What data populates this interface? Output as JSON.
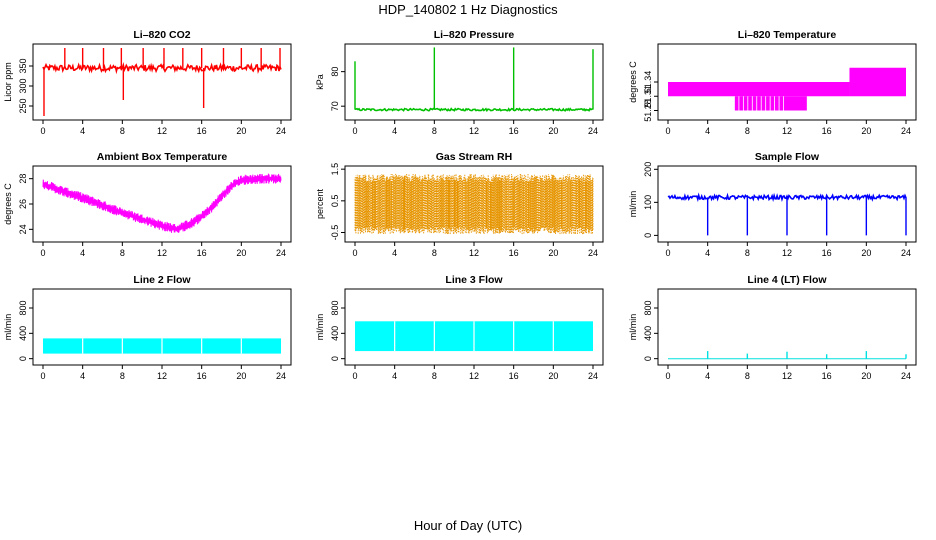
{
  "page": {
    "title": "HDP_140802  1 Hz Diagnostics",
    "xlabel": "Hour of Day (UTC)"
  },
  "chart_data": [
    {
      "type": "line",
      "title": "Li–820 CO2",
      "ylabel": "Licor ppm",
      "color": "#ff0000",
      "xlim": [
        0,
        24
      ],
      "ylim": [
        215,
        405
      ],
      "x_ticks": [
        0,
        4,
        8,
        12,
        16,
        20,
        24
      ],
      "y_ticks": [
        250,
        300,
        350
      ],
      "baseline": 345,
      "noise": 8,
      "spikes": [
        {
          "x": 0.1,
          "y": 225
        },
        {
          "x": 2.2,
          "y": 395
        },
        {
          "x": 4.0,
          "y": 395
        },
        {
          "x": 6.1,
          "y": 395
        },
        {
          "x": 7.9,
          "y": 395
        },
        {
          "x": 8.1,
          "y": 265
        },
        {
          "x": 10.1,
          "y": 395
        },
        {
          "x": 12.2,
          "y": 395
        },
        {
          "x": 14.1,
          "y": 395
        },
        {
          "x": 16.0,
          "y": 395
        },
        {
          "x": 16.2,
          "y": 245
        },
        {
          "x": 18.2,
          "y": 395
        },
        {
          "x": 20.0,
          "y": 395
        },
        {
          "x": 22.0,
          "y": 395
        },
        {
          "x": 23.9,
          "y": 395
        }
      ]
    },
    {
      "type": "line",
      "title": "Li–820 Pressure",
      "ylabel": "kPa",
      "color": "#00c000",
      "xlim": [
        0,
        24
      ],
      "ylim": [
        66,
        88
      ],
      "x_ticks": [
        0,
        4,
        8,
        12,
        16,
        20,
        24
      ],
      "y_ticks": [
        70,
        80
      ],
      "baseline": 69,
      "noise": 0.3,
      "spikes": [
        {
          "x": 0.0,
          "y": 83
        },
        {
          "x": 8.0,
          "y": 87
        },
        {
          "x": 16.0,
          "y": 87
        },
        {
          "x": 24.0,
          "y": 86.5
        }
      ]
    },
    {
      "type": "area",
      "title": "Li–820 Temperature",
      "ylabel": "degrees C",
      "color": "#ff00ff",
      "xlim": [
        0,
        24
      ],
      "ylim": [
        51.26,
        51.42
      ],
      "x_ticks": [
        0,
        4,
        8,
        12,
        16,
        20,
        24
      ],
      "y_ticks": [
        51.28,
        51.31,
        51.34
      ],
      "bands": [
        {
          "x0": 0,
          "x1": 18.3,
          "y0": 51.31,
          "y1": 51.34
        },
        {
          "x0": 18.3,
          "x1": 24,
          "y0": 51.31,
          "y1": 51.37
        },
        {
          "x0": 6.7,
          "x1": 14,
          "y0": 51.28,
          "y1": 51.31
        }
      ]
    },
    {
      "type": "line",
      "title": "Ambient Box Temperature",
      "ylabel": "degrees C",
      "color": "#ff00ff",
      "xlim": [
        0,
        24
      ],
      "ylim": [
        23,
        29
      ],
      "x_ticks": [
        0,
        4,
        8,
        12,
        16,
        20,
        24
      ],
      "y_ticks": [
        24,
        26,
        28
      ],
      "points": [
        [
          0,
          27.6
        ],
        [
          2,
          27.0
        ],
        [
          4,
          26.5
        ],
        [
          6,
          25.9
        ],
        [
          8,
          25.3
        ],
        [
          10,
          24.8
        ],
        [
          12,
          24.3
        ],
        [
          13.5,
          24.0
        ],
        [
          15,
          24.5
        ],
        [
          16,
          25.0
        ],
        [
          17,
          25.7
        ],
        [
          18,
          26.6
        ],
        [
          19,
          27.4
        ],
        [
          20,
          27.9
        ],
        [
          22,
          28.0
        ],
        [
          24,
          28.0
        ]
      ],
      "noise": 0.4
    },
    {
      "type": "scatter",
      "title": "Gas Stream RH",
      "ylabel": "percent",
      "color": "#e69500",
      "xlim": [
        0,
        24
      ],
      "ylim": [
        -0.8,
        1.6
      ],
      "x_ticks": [
        0,
        4,
        8,
        12,
        16,
        20,
        24
      ],
      "y_ticks": [
        -0.5,
        0.5,
        1.5
      ],
      "band": {
        "low": -0.3,
        "high": 1.1
      }
    },
    {
      "type": "line",
      "title": "Sample Flow",
      "ylabel": "ml/min",
      "color": "#0000ff",
      "xlim": [
        0,
        24
      ],
      "ylim": [
        -20,
        210
      ],
      "x_ticks": [
        0,
        4,
        8,
        12,
        16,
        20,
        24
      ],
      "y_ticks": [
        0,
        100,
        200
      ],
      "baseline": 115,
      "noise": 6,
      "spikes": [
        {
          "x": 4.0,
          "y": 0
        },
        {
          "x": 8.0,
          "y": 0
        },
        {
          "x": 12.0,
          "y": 0
        },
        {
          "x": 16.0,
          "y": 0
        },
        {
          "x": 20.0,
          "y": 0
        },
        {
          "x": 24.0,
          "y": 0
        }
      ]
    },
    {
      "type": "area",
      "title": "Line 2 Flow",
      "ylabel": "ml/min",
      "color": "#00ffff",
      "xlim": [
        0,
        24
      ],
      "ylim": [
        -100,
        1100
      ],
      "x_ticks": [
        0,
        4,
        8,
        12,
        16,
        20,
        24
      ],
      "y_ticks": [
        0,
        400,
        800
      ],
      "bands": [
        {
          "x0": 0,
          "x1": 24,
          "y0": 80,
          "y1": 320
        }
      ],
      "gaps": [
        4,
        8,
        12,
        16,
        20
      ]
    },
    {
      "type": "area",
      "title": "Line 3 Flow",
      "ylabel": "ml/min",
      "color": "#00ffff",
      "xlim": [
        0,
        24
      ],
      "ylim": [
        -100,
        1100
      ],
      "x_ticks": [
        0,
        4,
        8,
        12,
        16,
        20,
        24
      ],
      "y_ticks": [
        0,
        400,
        800
      ],
      "bands": [
        {
          "x0": 0,
          "x1": 24,
          "y0": 120,
          "y1": 590
        }
      ],
      "gaps": [
        4,
        8,
        12,
        16,
        20
      ]
    },
    {
      "type": "line",
      "title": "Line 4 (LT) Flow",
      "ylabel": "ml/min",
      "color": "#00e0e0",
      "xlim": [
        0,
        24
      ],
      "ylim": [
        -100,
        1100
      ],
      "x_ticks": [
        0,
        4,
        8,
        12,
        16,
        20,
        24
      ],
      "y_ticks": [
        0,
        400,
        800
      ],
      "baseline": 0,
      "noise": 0,
      "spikes": [
        {
          "x": 4.0,
          "y": 120
        },
        {
          "x": 8.0,
          "y": 80
        },
        {
          "x": 12.0,
          "y": 110
        },
        {
          "x": 16.0,
          "y": 70
        },
        {
          "x": 20.0,
          "y": 120
        },
        {
          "x": 24.0,
          "y": 70
        }
      ]
    }
  ]
}
